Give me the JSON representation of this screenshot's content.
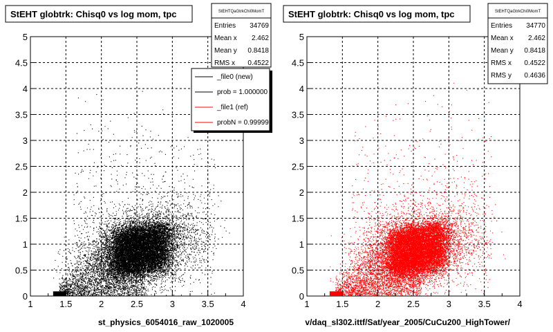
{
  "footer_text": "",
  "chart_data": [
    {
      "type": "scatter",
      "title": "StEHT globtrk: Chisq0 vs log mom, tpc",
      "xlabel": "st_physics_6054016_raw_1020005",
      "ylabel": "",
      "xlim": [
        1,
        4
      ],
      "ylim": [
        0,
        5
      ],
      "xticks": [
        "1",
        "1.5",
        "2",
        "2.5",
        "3",
        "3.5",
        "4"
      ],
      "yticks": [
        "0",
        "0.5",
        "1",
        "1.5",
        "2",
        "2.5",
        "3",
        "3.5",
        "4",
        "4.5",
        "5"
      ],
      "grid": true,
      "marker_color": "#000000",
      "distribution": {
        "center_x": 2.5,
        "center_y": 0.85,
        "low_x_edge": 1.32,
        "peak_region": [
          2.2,
          2.9,
          0.5,
          1.3
        ]
      },
      "stats": {
        "name": "StEHTQaGtrkChi0MomT",
        "rows": [
          {
            "label": "Entries",
            "value": "34769"
          },
          {
            "label": "Mean x",
            "value": "2.462"
          },
          {
            "label": "Mean y",
            "value": "0.8418"
          },
          {
            "label": "RMS x",
            "value": "0.4522"
          }
        ]
      },
      "legend": {
        "placement": "top-right",
        "entries": [
          {
            "label": "_file0 (new)",
            "color": "#000000"
          },
          {
            "label": "prob = 1.000000",
            "color": "#000000"
          },
          {
            "label": "_file1 (ref)",
            "color": "#ff0000"
          },
          {
            "label": "probN = 0.999999",
            "color": "#ff0000"
          }
        ]
      }
    },
    {
      "type": "scatter",
      "title": "StEHT globtrk: Chisq0 vs log mom, tpc",
      "xlabel": "v/daq_sl302.ittf/Sat/year_2005/CuCu200_HighTower/",
      "ylabel": "",
      "xlim": [
        1,
        4
      ],
      "ylim": [
        0,
        5
      ],
      "xticks": [
        "1",
        "1.5",
        "2",
        "2.5",
        "3",
        "3.5",
        "4"
      ],
      "yticks": [
        "0",
        "0.5",
        "1",
        "1.5",
        "2",
        "2.5",
        "3",
        "3.5",
        "4",
        "4.5",
        "5"
      ],
      "grid": true,
      "marker_color": "#ff0000",
      "distribution": {
        "center_x": 2.5,
        "center_y": 0.85,
        "low_x_edge": 1.32,
        "peak_region": [
          2.2,
          2.9,
          0.5,
          1.3
        ]
      },
      "stats": {
        "name": "StEHTQaGtrkChi0MomT",
        "rows": [
          {
            "label": "Entries",
            "value": "34770"
          },
          {
            "label": "Mean x",
            "value": "2.462"
          },
          {
            "label": "Mean y",
            "value": "0.8418"
          },
          {
            "label": "RMS x",
            "value": "0.4522"
          },
          {
            "label": "RMS y",
            "value": "0.4636"
          }
        ]
      }
    }
  ]
}
